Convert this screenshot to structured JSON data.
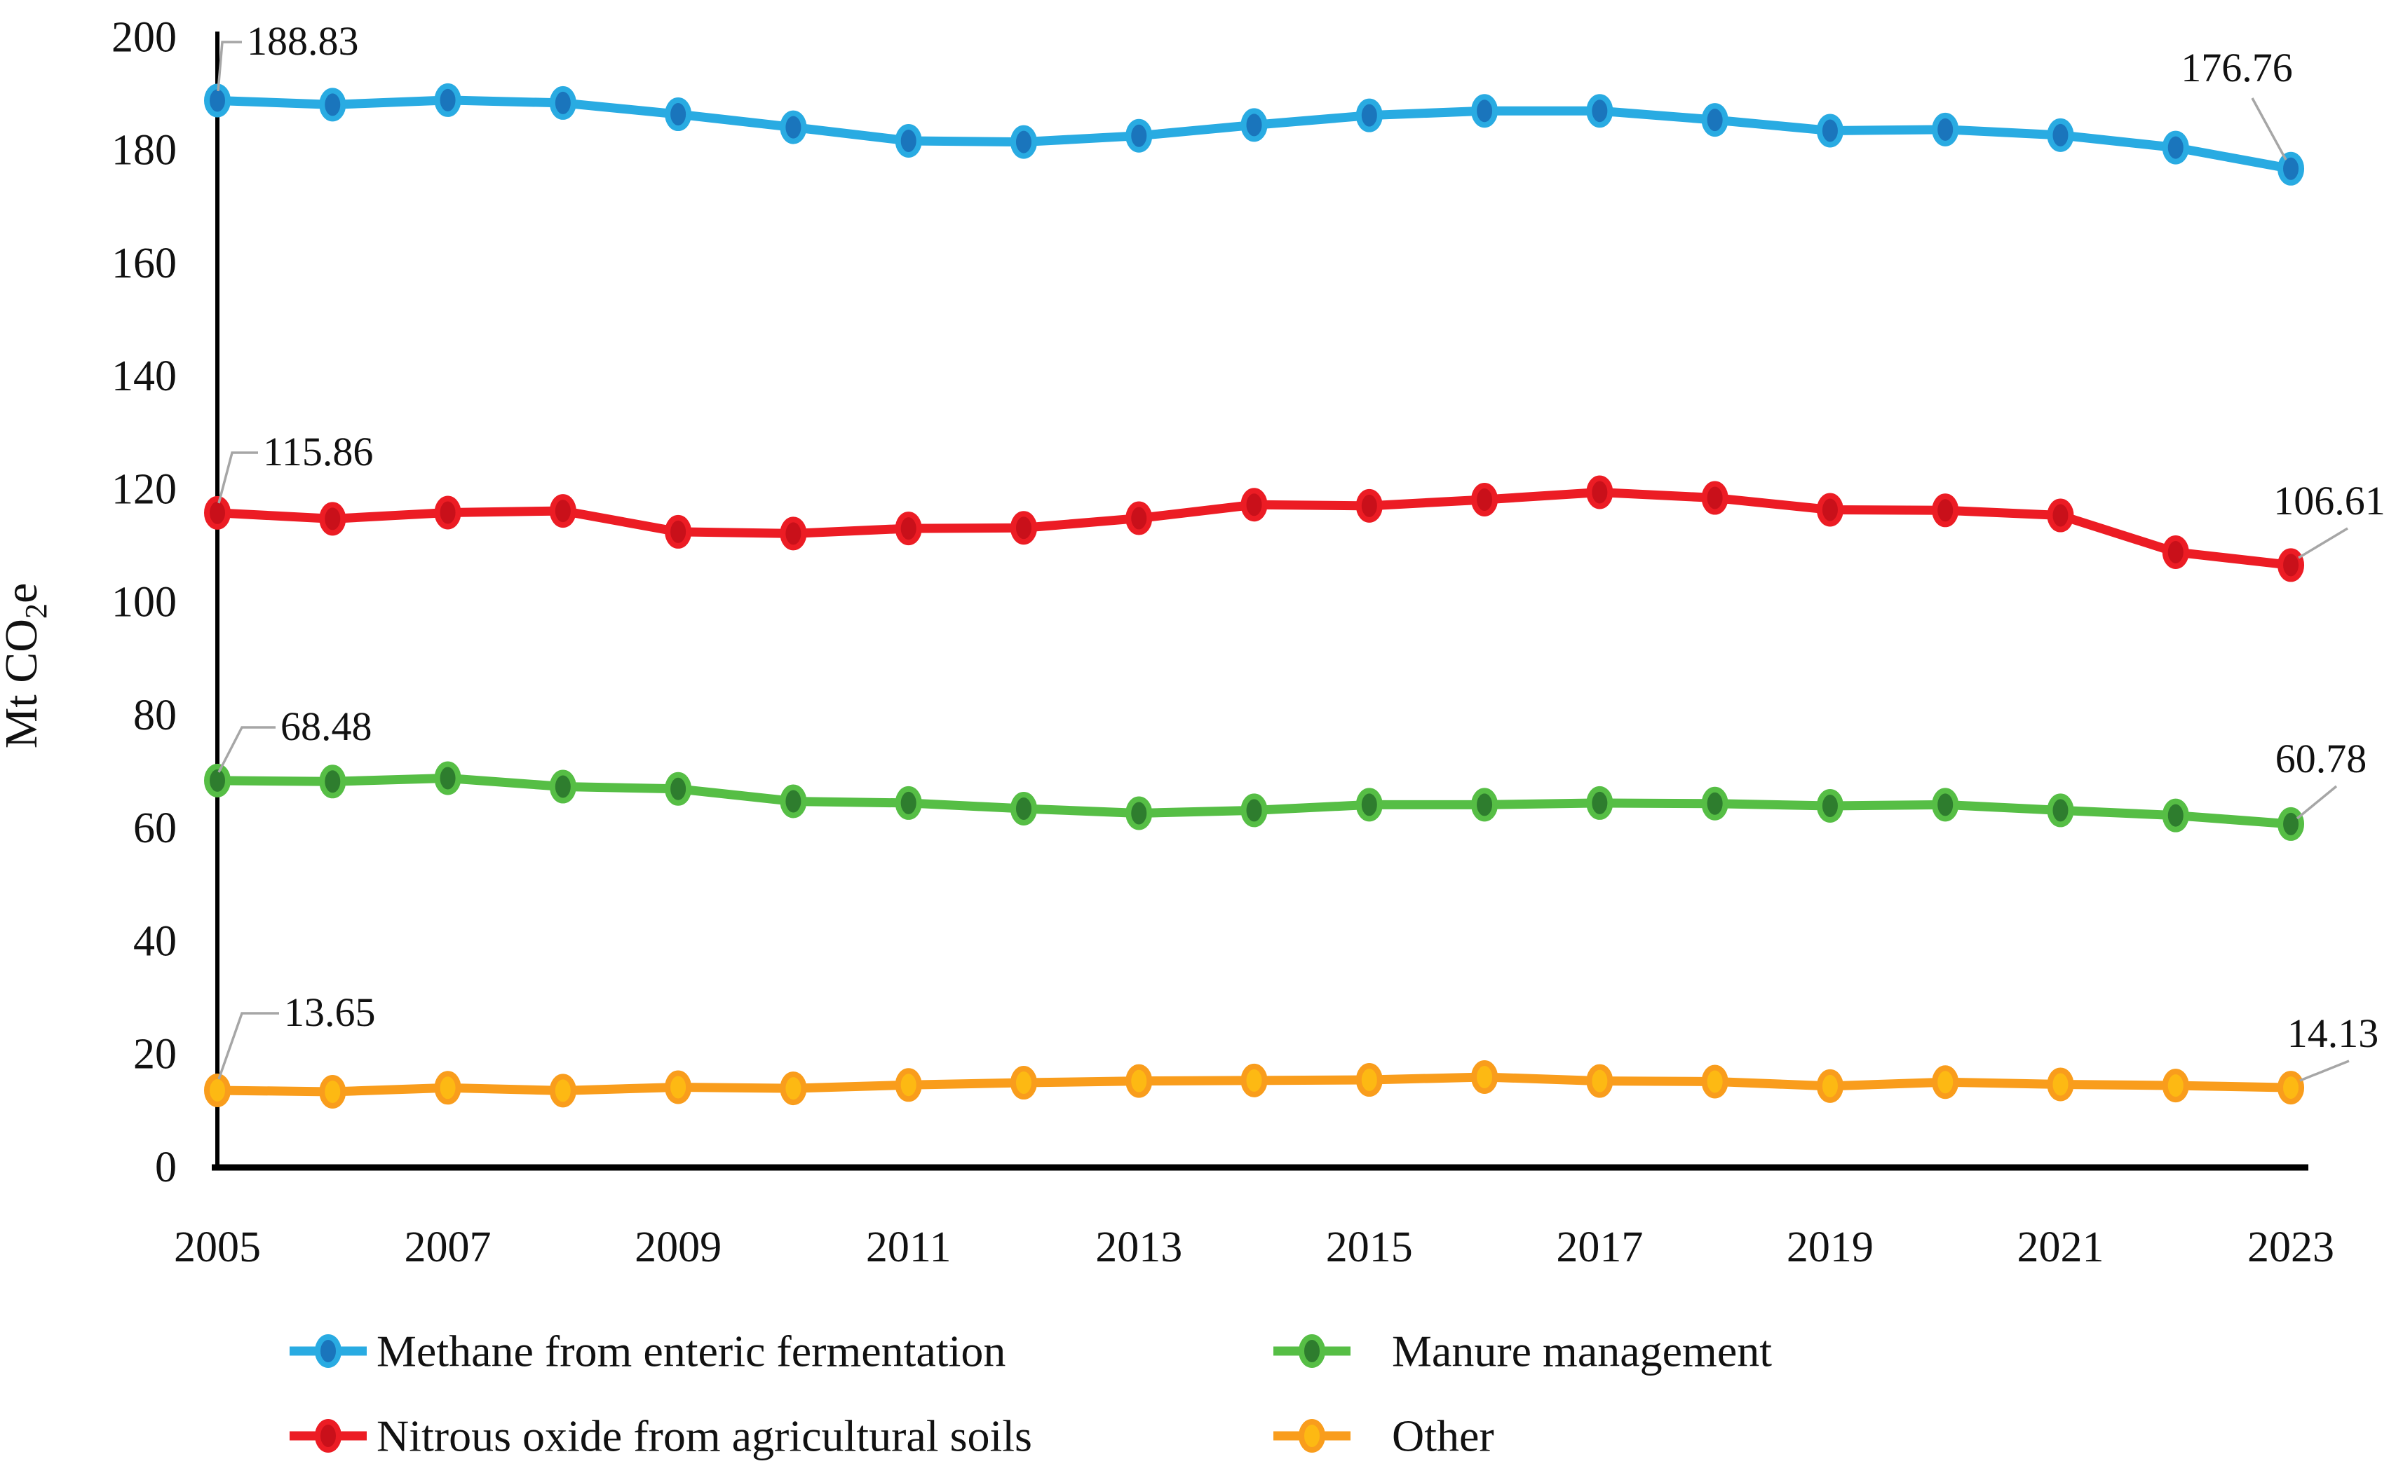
{
  "chart_data": {
    "type": "line",
    "title": "",
    "ylabel": "Mt CO₂e",
    "ylabel_parts": {
      "pre": "Mt CO",
      "sub": "2",
      "post": "e"
    },
    "x": [
      2005,
      2006,
      2007,
      2008,
      2009,
      2010,
      2011,
      2012,
      2013,
      2014,
      2015,
      2016,
      2017,
      2018,
      2019,
      2020,
      2021,
      2022,
      2023
    ],
    "x_tick_labels": [
      "2005",
      "2007",
      "2009",
      "2011",
      "2013",
      "2015",
      "2017",
      "2019",
      "2021",
      "2023"
    ],
    "y_ticks": [
      0,
      20,
      40,
      60,
      80,
      100,
      120,
      140,
      160,
      180,
      200
    ],
    "ylim": [
      0,
      200
    ],
    "grid": false,
    "legend_position": "bottom",
    "series": [
      {
        "name": "Methane from enteric fermentation",
        "color": "#29abe2",
        "marker_color": "#1a75bc",
        "first_label": "188.83",
        "last_label": "176.76",
        "values": [
          188.83,
          188.1,
          188.9,
          188.4,
          186.4,
          184.1,
          181.7,
          181.5,
          182.6,
          184.5,
          186.2,
          187.0,
          187.0,
          185.4,
          183.5,
          183.7,
          182.7,
          180.5,
          176.76
        ]
      },
      {
        "name": "Nitrous oxide from agricultural soils",
        "color": "#ec1c24",
        "marker_color": "#c9101a",
        "first_label": "115.86",
        "last_label": "106.61",
        "values": [
          115.86,
          114.8,
          115.9,
          116.2,
          112.5,
          112.2,
          113.1,
          113.2,
          114.9,
          117.3,
          117.1,
          118.2,
          119.5,
          118.5,
          116.4,
          116.3,
          115.4,
          108.9,
          106.61
        ]
      },
      {
        "name": "Manure management",
        "color": "#56be45",
        "marker_color": "#2e7d2e",
        "first_label": "68.48",
        "last_label": "60.78",
        "values": [
          68.48,
          68.3,
          68.9,
          67.4,
          67.0,
          64.8,
          64.5,
          63.5,
          62.7,
          63.2,
          64.2,
          64.2,
          64.5,
          64.4,
          64.0,
          64.2,
          63.2,
          62.3,
          60.78
        ]
      },
      {
        "name": "Other",
        "color": "#f99d1c",
        "marker_color": "#fdb913",
        "first_label": "13.65",
        "last_label": "14.13",
        "values": [
          13.65,
          13.4,
          14.1,
          13.6,
          14.2,
          14.0,
          14.6,
          15.0,
          15.3,
          15.4,
          15.5,
          16.0,
          15.3,
          15.2,
          14.4,
          15.1,
          14.7,
          14.5,
          14.13
        ]
      }
    ]
  },
  "colors": {
    "axis": "#000000",
    "tick_text": "#000000",
    "callout_text": "#111111",
    "leader_line": "#a6a6a6",
    "background": "#ffffff"
  }
}
